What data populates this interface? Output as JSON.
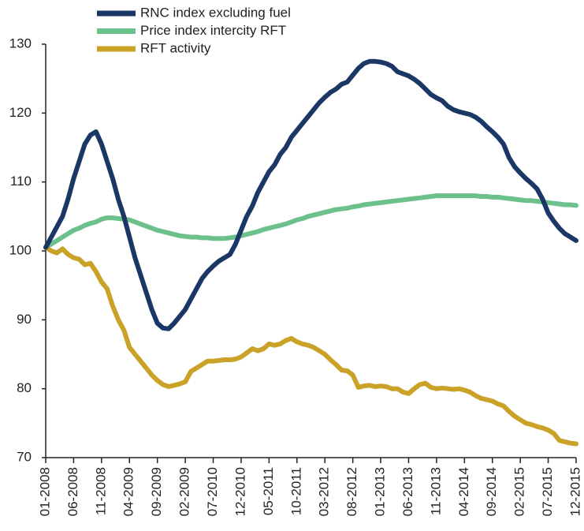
{
  "chart_data": {
    "type": "line",
    "categories": [
      "01-2008",
      null,
      null,
      null,
      null,
      "06-2008",
      null,
      null,
      null,
      null,
      "11-2008",
      null,
      null,
      null,
      null,
      "04-2009",
      null,
      null,
      null,
      null,
      "09-2009",
      null,
      null,
      null,
      null,
      "02-2009",
      null,
      null,
      null,
      null,
      "07-2010",
      null,
      null,
      null,
      null,
      "12-2010",
      null,
      null,
      null,
      null,
      "05-2011",
      null,
      null,
      null,
      null,
      "10-2011",
      null,
      null,
      null,
      null,
      "03-2012",
      null,
      null,
      null,
      null,
      "08-2012",
      null,
      null,
      null,
      null,
      "01-2013",
      null,
      null,
      null,
      null,
      "06-2013",
      null,
      null,
      null,
      null,
      "11-2013",
      null,
      null,
      null,
      null,
      "04-2014",
      null,
      null,
      null,
      null,
      "09-2014",
      null,
      null,
      null,
      null,
      "02-2015",
      null,
      null,
      null,
      null,
      "07-2015",
      null,
      null,
      null,
      null,
      "12-2015"
    ],
    "series": [
      {
        "name": "RNC index excluding fuel",
        "color": "#1b3766",
        "values": [
          100.5,
          102,
          103.5,
          105,
          107.5,
          110.5,
          113,
          115.5,
          116.8,
          117.3,
          115.5,
          113,
          110.5,
          107.5,
          105,
          102,
          99,
          96.5,
          94,
          91.5,
          89.5,
          88.8,
          88.7,
          89.5,
          90.5,
          91.5,
          93,
          94.5,
          96,
          97,
          97.8,
          98.5,
          99,
          99.5,
          101,
          103,
          105,
          106.5,
          108.5,
          110,
          111.5,
          112.5,
          114,
          115,
          116.5,
          117.5,
          118.5,
          119.5,
          120.5,
          121.5,
          122.3,
          123,
          123.5,
          124.2,
          124.5,
          125.5,
          126.5,
          127.2,
          127.5,
          127.5,
          127.4,
          127.2,
          126.8,
          126,
          125.7,
          125.4,
          124.9,
          124.3,
          123.5,
          122.7,
          122.2,
          121.8,
          121,
          120.5,
          120.2,
          120,
          119.8,
          119.4,
          118.8,
          118,
          117.3,
          116.5,
          115.5,
          113.5,
          112.2,
          111.3,
          110.5,
          109.8,
          109,
          107.5,
          105.5,
          104.3,
          103.3,
          102.5,
          102,
          101.5
        ]
      },
      {
        "name": "Price index intercity RFT",
        "color": "#6cc08b",
        "values": [
          100.5,
          101,
          101.5,
          102,
          102.5,
          103,
          103.3,
          103.7,
          104,
          104.2,
          104.6,
          104.8,
          104.8,
          104.7,
          104.6,
          104.5,
          104.2,
          103.9,
          103.6,
          103.3,
          103,
          102.8,
          102.6,
          102.4,
          102.2,
          102.1,
          102,
          102,
          101.9,
          101.9,
          101.8,
          101.8,
          101.8,
          101.9,
          102,
          102.2,
          102.4,
          102.6,
          102.8,
          103.1,
          103.3,
          103.5,
          103.7,
          103.9,
          104.2,
          104.5,
          104.7,
          105,
          105.2,
          105.4,
          105.6,
          105.8,
          106,
          106.1,
          106.2,
          106.4,
          106.5,
          106.7,
          106.8,
          106.9,
          107,
          107.1,
          107.2,
          107.3,
          107.4,
          107.5,
          107.6,
          107.7,
          107.8,
          107.9,
          108,
          108,
          108,
          108,
          108,
          108,
          108,
          108,
          107.9,
          107.9,
          107.8,
          107.8,
          107.7,
          107.6,
          107.5,
          107.4,
          107.3,
          107.3,
          107.2,
          107.1,
          107,
          106.9,
          106.8,
          106.7,
          106.7,
          106.6
        ]
      },
      {
        "name": "RFT activity",
        "color": "#c9a227",
        "values": [
          100.5,
          100,
          99.7,
          100.3,
          99.5,
          99,
          98.8,
          98,
          98.2,
          97,
          95.5,
          94.5,
          92,
          90,
          88.5,
          86,
          85,
          84,
          83,
          82,
          81.2,
          80.6,
          80.3,
          80.5,
          80.7,
          81,
          82.5,
          83,
          83.5,
          84,
          84,
          84.1,
          84.2,
          84.2,
          84.3,
          84.6,
          85.2,
          85.8,
          85.5,
          85.8,
          86.5,
          86.3,
          86.5,
          87,
          87.3,
          86.8,
          86.5,
          86.3,
          86,
          85.5,
          85,
          84.2,
          83.5,
          82.7,
          82.6,
          82,
          80.2,
          80.4,
          80.5,
          80.3,
          80.4,
          80.3,
          80,
          80,
          79.5,
          79.3,
          80,
          80.6,
          80.8,
          80.2,
          80,
          80.1,
          80,
          79.9,
          80,
          79.8,
          79.5,
          79,
          78.6,
          78.4,
          78.2,
          77.8,
          77.5,
          76.7,
          76,
          75.5,
          75,
          74.8,
          74.5,
          74.3,
          74,
          73.5,
          72.5,
          72.3,
          72.1,
          72
        ]
      }
    ],
    "ylim": [
      70,
      130
    ],
    "yticks": [
      70,
      80,
      90,
      100,
      110,
      120,
      130
    ],
    "grid": false,
    "legend": "top-left"
  }
}
